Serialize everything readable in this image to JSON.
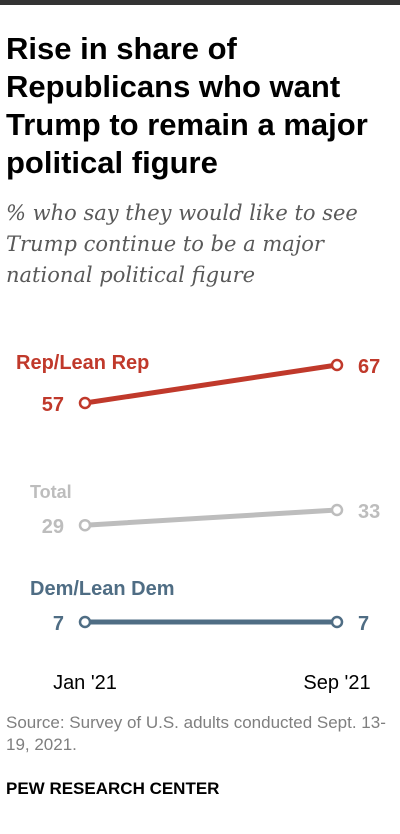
{
  "header": {
    "title": "Rise in share of Republicans who want Trump to remain a major political figure",
    "subtitle": "% who say they would like to see Trump continue to be a major national political figure"
  },
  "chart_data": {
    "type": "line",
    "x": [
      "Jan '21",
      "Sep '21"
    ],
    "series": [
      {
        "name": "Rep/Lean Rep",
        "values": [
          57,
          67
        ],
        "labels": [
          "57",
          "67"
        ],
        "color": "#c0392b"
      },
      {
        "name": "Total",
        "values": [
          29,
          33
        ],
        "labels": [
          "29",
          "33"
        ],
        "color": "#bdbdbd"
      },
      {
        "name": "Dem/Lean Dem",
        "values": [
          7,
          7
        ],
        "labels": [
          "7",
          "7"
        ],
        "color": "#4f6d84"
      }
    ],
    "xlabel": "",
    "ylabel": "",
    "grid": false,
    "legend": "inline labels above lines"
  },
  "footer": {
    "source": "Source: Survey of U.S. adults conducted Sept. 13-19, 2021.",
    "organization": "PEW RESEARCH CENTER"
  }
}
